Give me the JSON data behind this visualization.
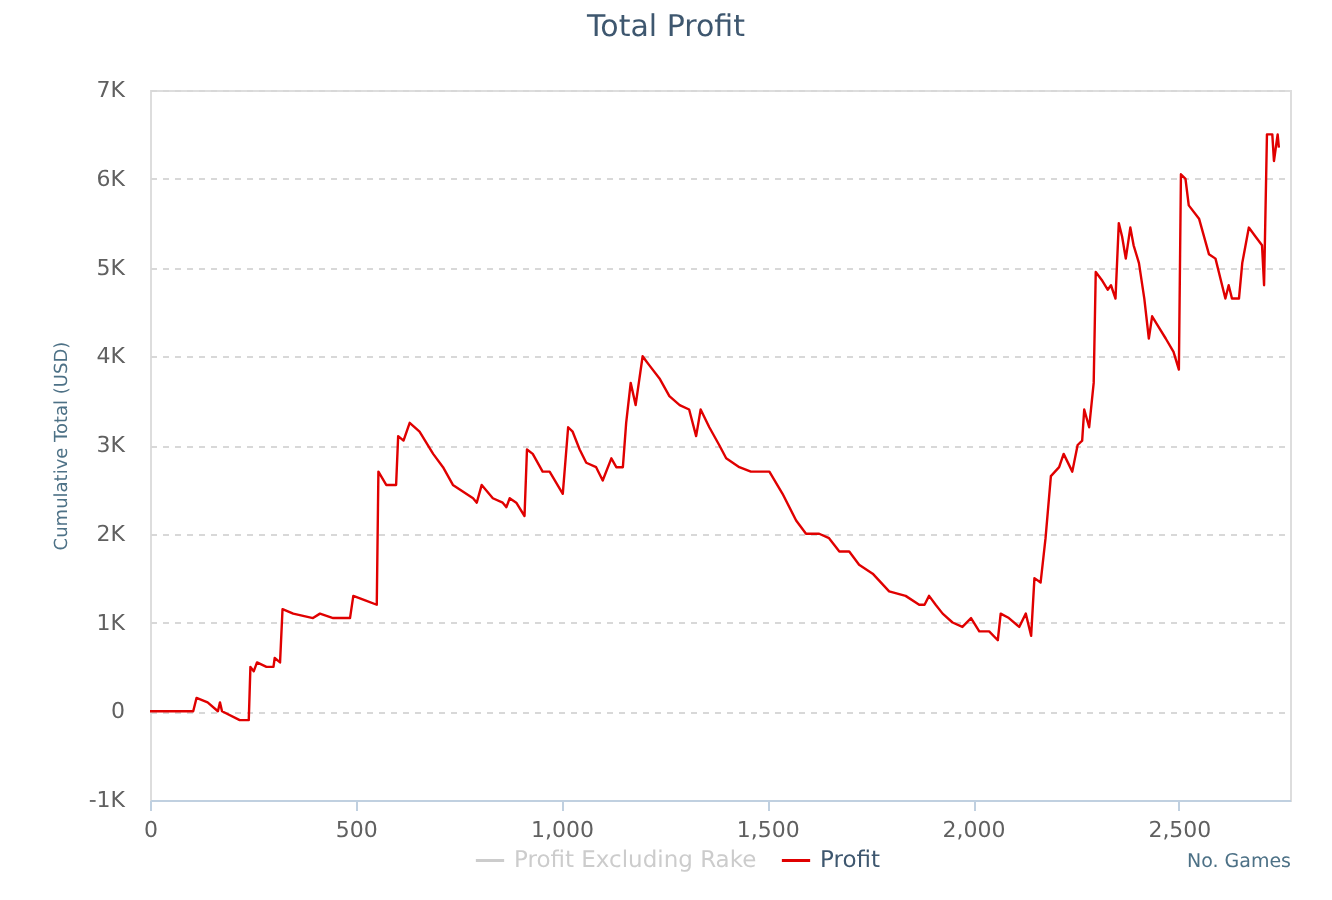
{
  "chart_data": {
    "type": "line",
    "title": "Total Profit",
    "xlabel": "No. Games",
    "ylabel": "Cumulative Total (USD)",
    "xlim": [
      0,
      2770
    ],
    "xticks": [
      0,
      500,
      {
        "value": 1000,
        "label": "1,000"
      },
      {
        "value": 1500,
        "label": "1,500"
      },
      {
        "value": 2000,
        "label": "2,000"
      },
      {
        "value": 2500,
        "label": "2,500"
      }
    ],
    "ylim": [
      -1000,
      7000
    ],
    "yticks": [
      {
        "value": -1000,
        "label": "-1K"
      },
      0,
      {
        "value": 1000,
        "label": "1K"
      },
      {
        "value": 2000,
        "label": "2K"
      },
      {
        "value": 3000,
        "label": "3K"
      },
      {
        "value": 4000,
        "label": "4K"
      },
      {
        "value": 5000,
        "label": "5K"
      },
      {
        "value": 6000,
        "label": "6K"
      },
      {
        "value": 7000,
        "label": "7K"
      }
    ],
    "grid": "y",
    "legend": "bottom",
    "series": [
      {
        "name": "Profit Excluding Rake",
        "color": "#cccccc"
      },
      {
        "name": "Profit",
        "color": "#e00000",
        "x": [
          0,
          105,
          113,
          140,
          165,
          170,
          175,
          218,
          240,
          244,
          252,
          260,
          283,
          300,
          303,
          316,
          322,
          348,
          396,
          413,
          445,
          486,
          494,
          523,
          551,
          555,
          574,
          598,
          603,
          616,
          631,
          655,
          688,
          712,
          736,
          785,
          794,
          806,
          833,
          857,
          866,
          874,
          890,
          910,
          916,
          930,
          954,
          971,
          1003,
          1016,
          1027,
          1044,
          1060,
          1084,
          1100,
          1121,
          1133,
          1149,
          1157,
          1168,
          1180,
          1197,
          1205,
          1213,
          1238,
          1262,
          1287,
          1310,
          1327,
          1338,
          1359,
          1383,
          1400,
          1432,
          1460,
          1481,
          1505,
          1537,
          1570,
          1594,
          1626,
          1650,
          1675,
          1699,
          1723,
          1756,
          1796,
          1836,
          1869,
          1882,
          1893,
          1909,
          1926,
          1950,
          1974,
          1995,
          2015,
          2039,
          2060,
          2067,
          2087,
          2112,
          2128,
          2141,
          2149,
          2164,
          2176,
          2189,
          2209,
          2220,
          2241,
          2254,
          2265,
          2270,
          2282,
          2293,
          2298,
          2314,
          2327,
          2335,
          2346,
          2354,
          2362,
          2371,
          2382,
          2390,
          2403,
          2416,
          2427,
          2435,
          2448,
          2468,
          2487,
          2500,
          2505,
          2516,
          2524,
          2549,
          2573,
          2589,
          2605,
          2613,
          2621,
          2629,
          2646,
          2654,
          2670,
          2686,
          2702,
          2707,
          2714,
          2727,
          2731,
          2740,
          2743
        ],
        "values": [
          0,
          0,
          150,
          100,
          0,
          100,
          0,
          -100,
          -100,
          500,
          450,
          550,
          500,
          500,
          600,
          550,
          1150,
          1100,
          1050,
          1100,
          1050,
          1050,
          1300,
          1250,
          1200,
          2700,
          2550,
          2550,
          3100,
          3050,
          3250,
          3150,
          2900,
          2750,
          2550,
          2400,
          2350,
          2550,
          2400,
          2350,
          2300,
          2400,
          2350,
          2200,
          2950,
          2900,
          2700,
          2700,
          2450,
          3200,
          3150,
          2950,
          2800,
          2750,
          2600,
          2850,
          2750,
          2750,
          3250,
          3700,
          3450,
          4000,
          3950,
          3900,
          3750,
          3550,
          3450,
          3400,
          3100,
          3400,
          3200,
          3000,
          2850,
          2750,
          2700,
          2700,
          2700,
          2450,
          2150,
          2000,
          2000,
          1950,
          1800,
          1800,
          1650,
          1550,
          1350,
          1300,
          1200,
          1200,
          1300,
          1200,
          1100,
          1000,
          950,
          1050,
          900,
          900,
          800,
          1100,
          1050,
          950,
          1100,
          850,
          1500,
          1450,
          1950,
          2650,
          2750,
          2900,
          2700,
          3000,
          3050,
          3400,
          3200,
          3700,
          4950,
          4850,
          4750,
          4800,
          4650,
          5500,
          5350,
          5100,
          5450,
          5250,
          5050,
          4650,
          4200,
          4450,
          4350,
          4200,
          4050,
          3850,
          6050,
          6000,
          5700,
          5550,
          5150,
          5100,
          4800,
          4650,
          4800,
          4650,
          4650,
          5050,
          5450,
          5350,
          5250,
          4800,
          6500,
          6500,
          6200,
          6500,
          6350
        ]
      }
    ]
  }
}
